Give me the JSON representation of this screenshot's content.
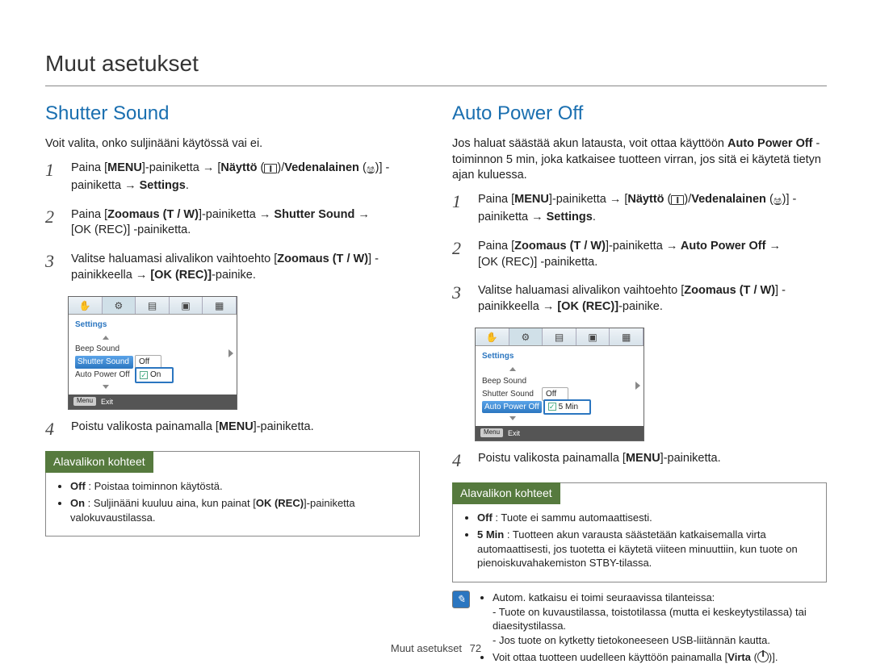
{
  "page": {
    "title": "Muut asetukset",
    "footer_label": "Muut asetukset",
    "page_number": "72"
  },
  "colors": {
    "accent_blue": "#1a6fb0",
    "callout_green": "#567a3e",
    "note_blue": "#2b76c0"
  },
  "left": {
    "title": "Shutter Sound",
    "intro": "Voit valita, onko suljinääni käytössä vai ei.",
    "steps": {
      "s1": {
        "num": "1",
        "pre": "Paina [",
        "menu": "MENU",
        "mid1": "]-painiketta ",
        "arrow": "→",
        "mid2": " [",
        "naytto": "Näyttö",
        "mid3": " (",
        "icon1": "disp",
        "mid4": ")/",
        "veden": "Vedenalainen",
        "mid5": " (",
        "icon2": "under",
        "mid6": ")] -painiketta ",
        "arrow2": "→",
        "end": " ",
        "settings": "Settings",
        "dot": "."
      },
      "s2": {
        "num": "2",
        "pre": "Paina [",
        "zoom": "Zoomaus",
        "tw": " (T / W)",
        "mid1": "]-painiketta ",
        "arrow": "→",
        "shutter": " Shutter Sound ",
        "arrow2": "→",
        "ok": " [OK (REC)]",
        "end": " -painiketta."
      },
      "s3": {
        "num": "3",
        "t1": "Valitse haluamasi alivalikon vaihtoehto [",
        "zoom": "Zoomaus",
        "tw": " (T / W)",
        "t2": "] -painikkeella ",
        "arrow": "→",
        "ok": " [OK (REC)]",
        "end": "-painike."
      },
      "s4": {
        "num": "4",
        "t": "Poistu valikosta painamalla [",
        "menu": "MENU",
        "end": "]-painiketta."
      }
    },
    "lcd": {
      "title": "Settings",
      "rows": {
        "beep": "Beep Sound",
        "shutter": "Shutter Sound",
        "auto": "Auto Power Off"
      },
      "opts": {
        "off": "Off",
        "on": "On"
      },
      "exit": "Exit",
      "menu": "Menu"
    },
    "callout": {
      "head": "Alavalikon kohteet",
      "off_label": "Off",
      "off_text": " : Poistaa toiminnon käytöstä.",
      "on_label": "On",
      "on_text_1": " : Suljinääni kuuluu aina, kun painat [",
      "on_ok": "OK (REC)",
      "on_text_2": "]-painiketta valokuvaustilassa."
    }
  },
  "right": {
    "title": "Auto Power Off",
    "intro_1": "Jos haluat säästää akun latausta, voit ottaa käyttöön ",
    "intro_bold": "Auto Power Off",
    "intro_2": " -toiminnon 5 min, joka katkaisee tuotteen virran, jos sitä ei käytetä tietyn ajan kuluessa.",
    "steps": {
      "s1": {
        "num": "1"
      },
      "s2": {
        "num": "2",
        "apo": " Auto Power Off "
      },
      "s3": {
        "num": "3"
      },
      "s4": {
        "num": "4"
      }
    },
    "lcd": {
      "title": "Settings",
      "rows": {
        "beep": "Beep Sound",
        "shutter": "Shutter Sound",
        "auto": "Auto Power Off"
      },
      "opts": {
        "off": "Off",
        "five": "5 Min"
      },
      "exit": "Exit",
      "menu": "Menu"
    },
    "callout": {
      "head": "Alavalikon kohteet",
      "off_label": "Off",
      "off_text": " : Tuote ei sammu automaattisesti.",
      "five_label": "5 Min",
      "five_text": " : Tuotteen akun varausta säästetään katkaisemalla virta automaattisesti, jos tuotetta ei käytetä viiteen minuuttiin, kun tuote on pienoiskuvahakemiston STBY-tilassa."
    },
    "note": {
      "l1": "Autom. katkaisu ei toimi seuraavissa tilanteissa:",
      "l1a": "- Tuote on kuvaustilassa, toistotilassa (mutta ei keskeytystilassa) tai diaesitystilassa.",
      "l1b": "- Jos tuote on kytketty tietokoneeseen USB-liitännän kautta.",
      "l2_a": "Voit ottaa tuotteen uudelleen käyttöön painamalla [",
      "l2_b": "Virta",
      "l2_c": " (",
      "l2_d": ")]."
    }
  }
}
